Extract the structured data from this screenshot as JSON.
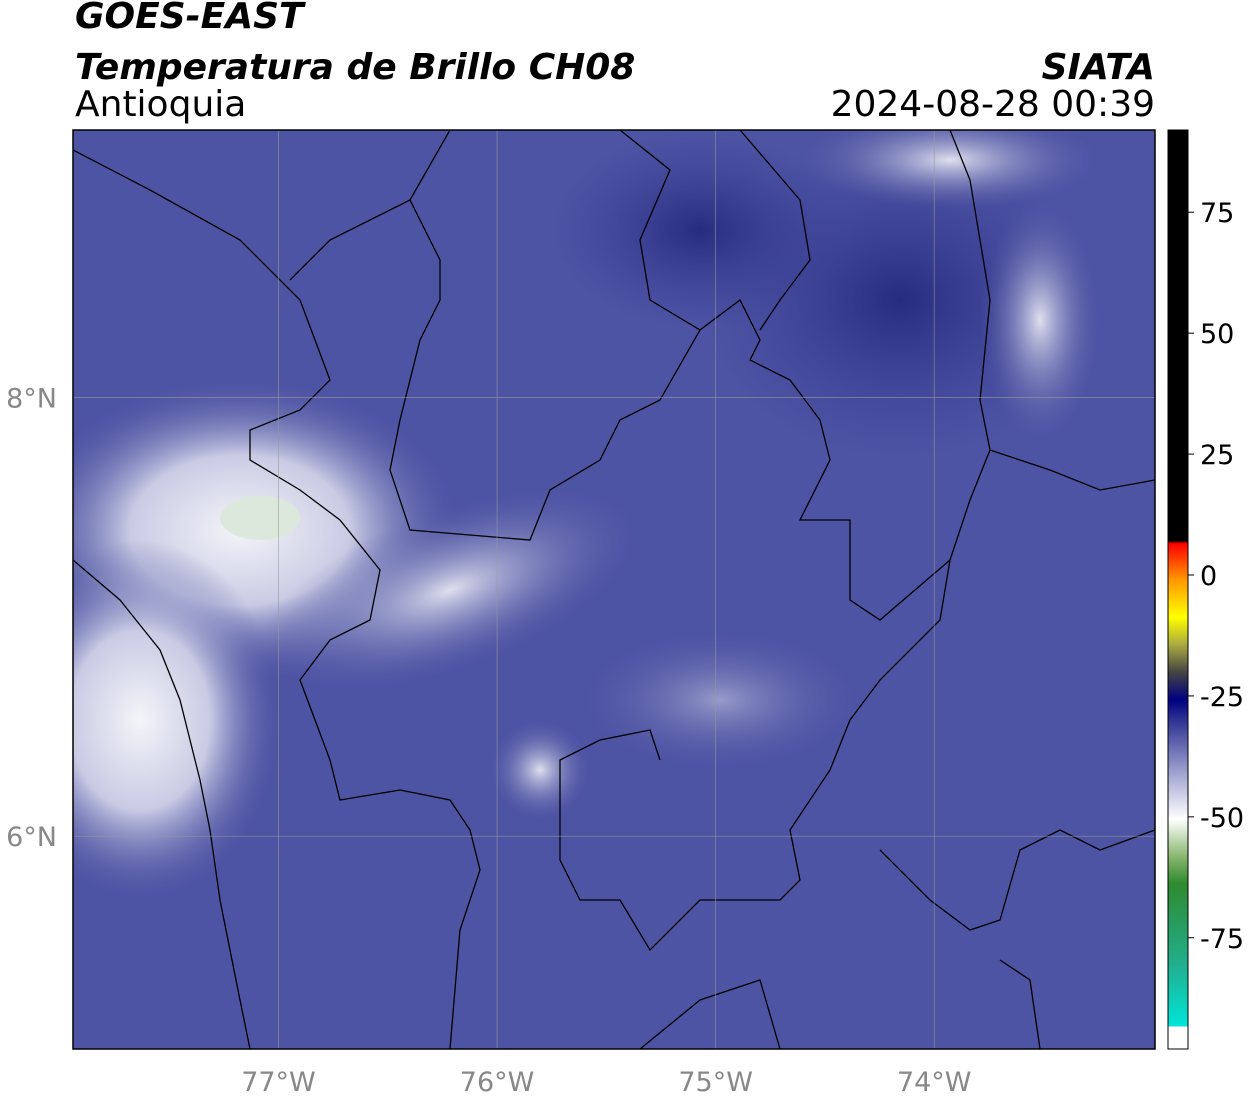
{
  "header": {
    "title": "GOES-EAST",
    "subtitle": "Temperatura de Brillo CH08",
    "region": "Antioquia",
    "source": "SIATA",
    "timestamp": "2024-08-28 00:39"
  },
  "map": {
    "xlim": [
      -77.94,
      -72.99
    ],
    "ylim": [
      5.03,
      9.22
    ],
    "xticks": [
      {
        "value": -77,
        "label": "77°W"
      },
      {
        "value": -76,
        "label": "76°W"
      },
      {
        "value": -75,
        "label": "75°W"
      },
      {
        "value": -74,
        "label": "74°W"
      }
    ],
    "yticks": [
      {
        "value": 8,
        "label": "8°N"
      },
      {
        "value": 6,
        "label": "6°N"
      }
    ],
    "grid": true
  },
  "colorbar": {
    "lim": [
      -98,
      92
    ],
    "ticks": [
      75,
      50,
      25,
      0,
      -25,
      -50,
      -75
    ]
  }
}
